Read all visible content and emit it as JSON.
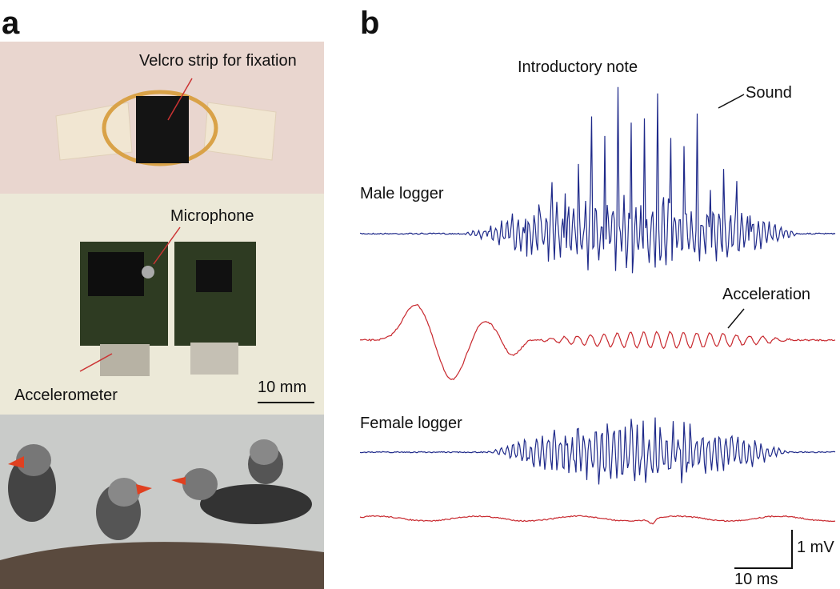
{
  "panels": {
    "a": {
      "label": "a",
      "velcro": "Velcro strip for fixation",
      "microphone": "Microphone",
      "accelerometer": "Accelerometer",
      "scale": "10 mm"
    },
    "b": {
      "label": "b",
      "intro": "Introductory note",
      "sound": "Sound",
      "male": "Male logger",
      "acceleration": "Acceleration",
      "female": "Female logger",
      "voltage_scale": "1 mV",
      "time_scale": "10 ms"
    }
  }
}
